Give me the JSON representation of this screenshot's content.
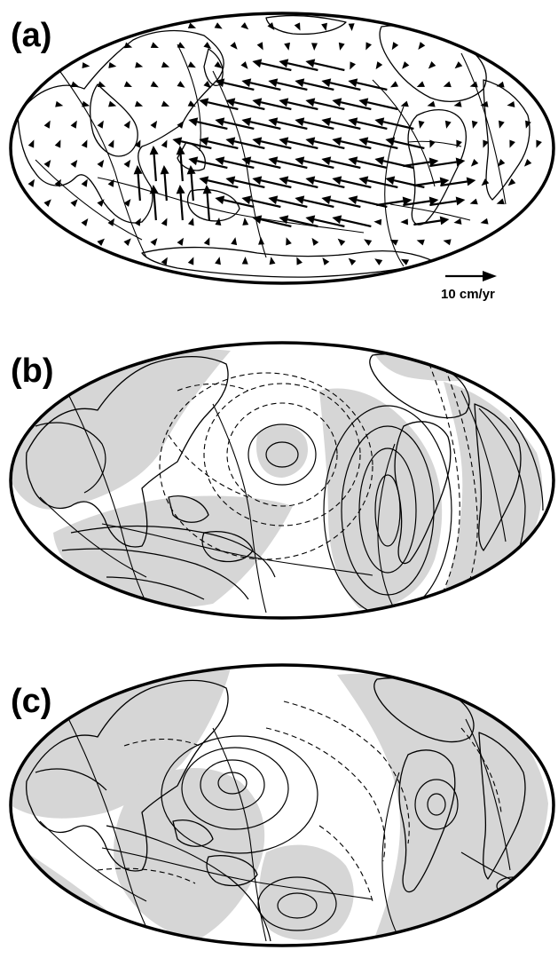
{
  "panels": [
    {
      "label": "(a)",
      "scale_label": "10 cm/yr"
    },
    {
      "label": "(b)"
    },
    {
      "label": "(c)"
    }
  ],
  "colors": {
    "outline": "#000000",
    "shade": "#d6d6d6",
    "background": "#ffffff"
  }
}
